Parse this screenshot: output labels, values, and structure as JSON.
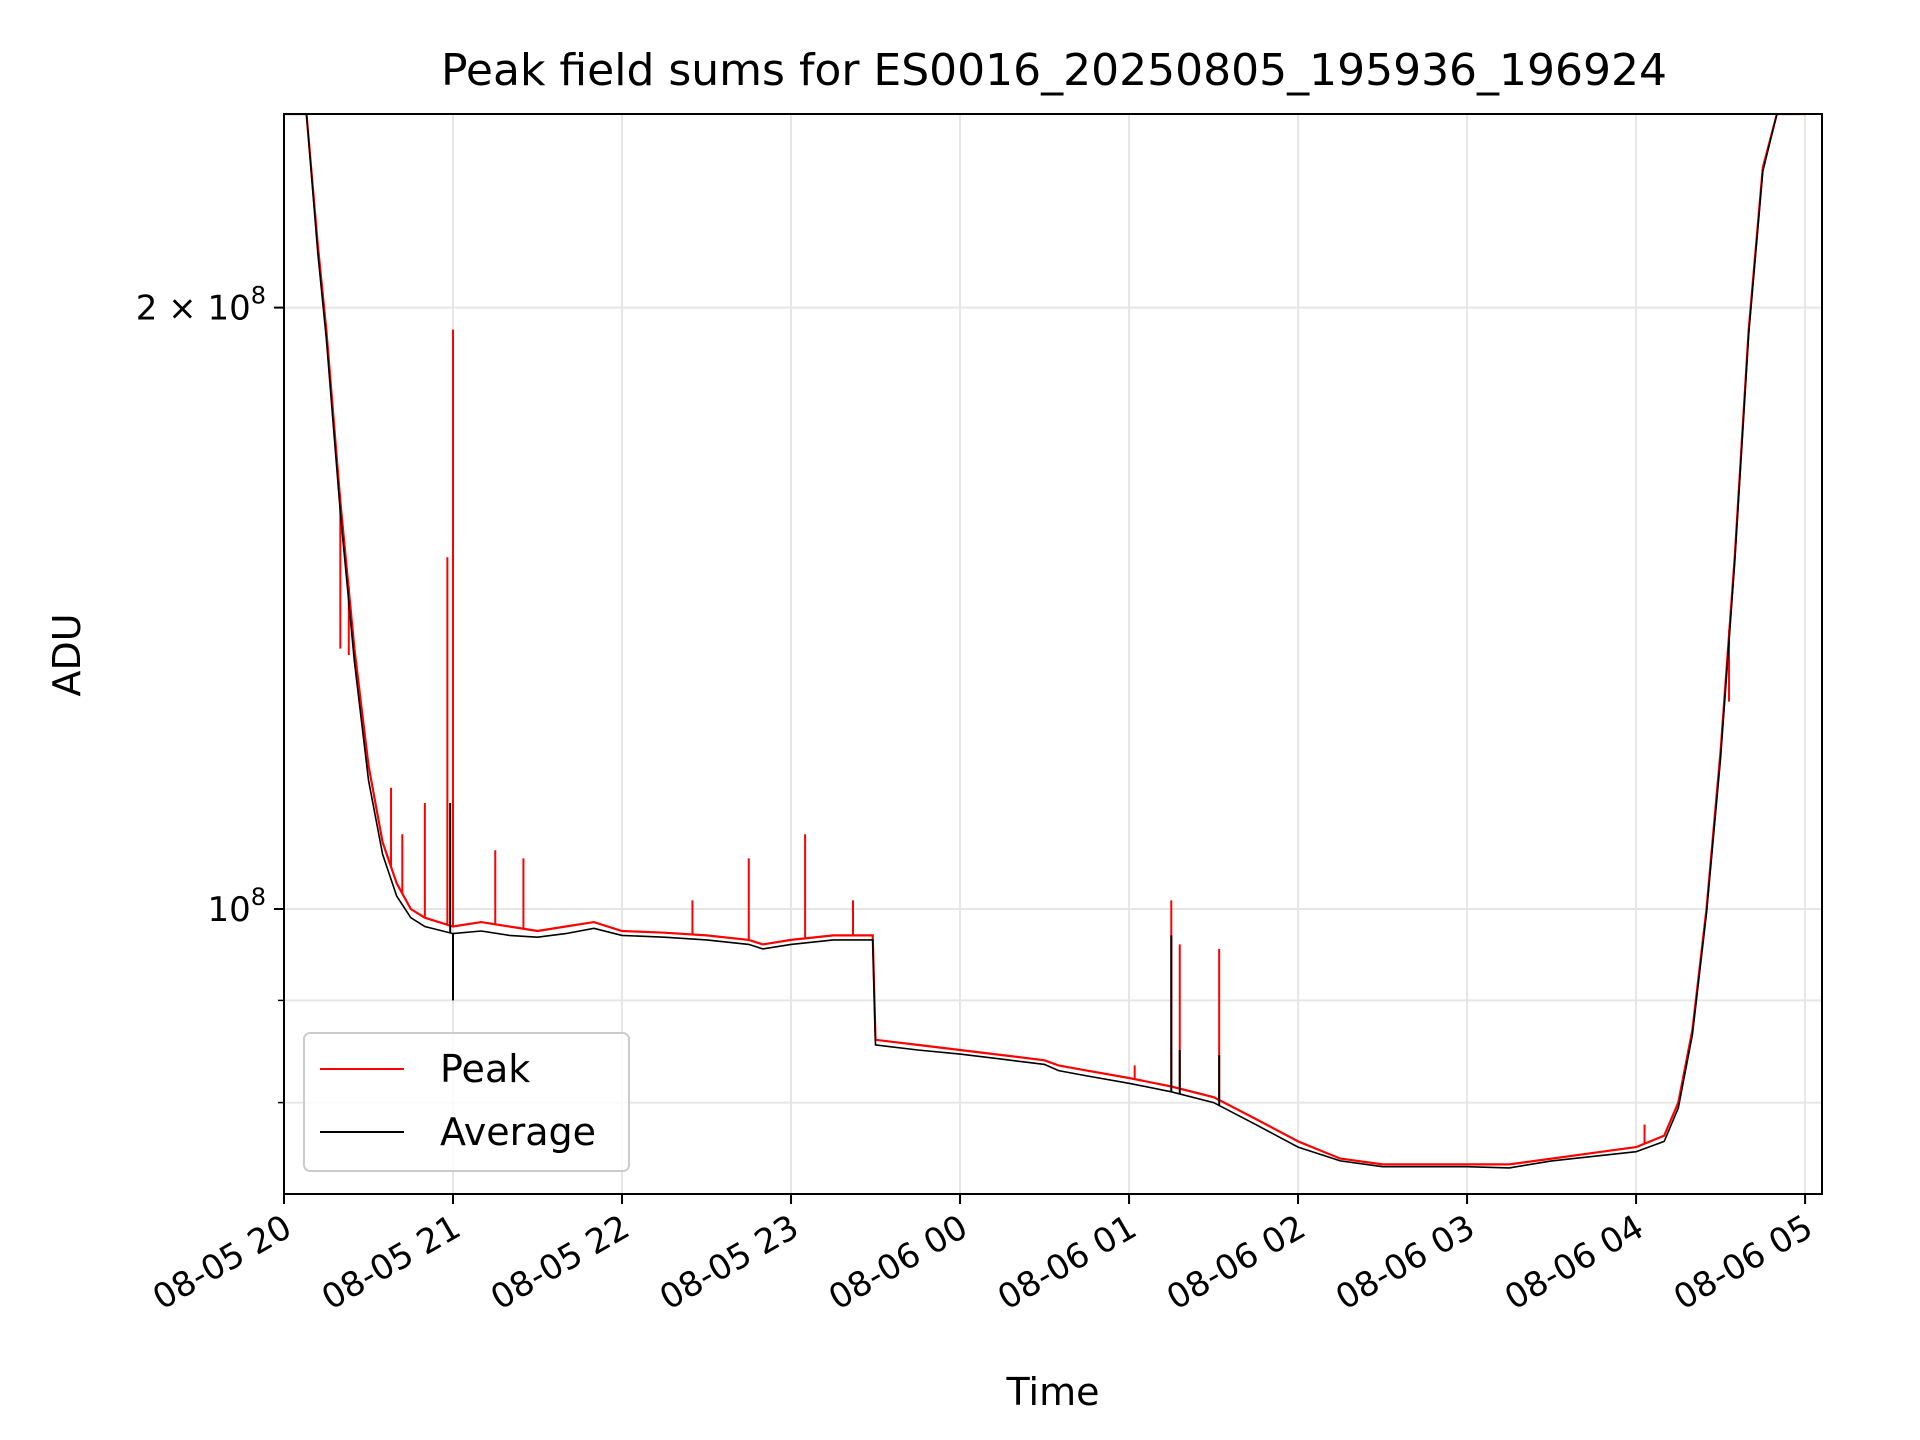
{
  "chart_data": {
    "type": "line",
    "title": "Peak field sums for ES0016_20250805_195936_196924",
    "xlabel": "Time",
    "ylabel": "ADU",
    "yscale": "log",
    "xlim": [
      "2025-08-05 20:00",
      "2025-08-06 05:00"
    ],
    "ylim": [
      72000000,
      250000000
    ],
    "grid": true,
    "legend_position": "lower-left",
    "x_ticks": [
      {
        "t": "2025-08-05 20:00",
        "label": "08-05 20"
      },
      {
        "t": "2025-08-05 21:00",
        "label": "08-05 21"
      },
      {
        "t": "2025-08-05 22:00",
        "label": "08-05 22"
      },
      {
        "t": "2025-08-05 23:00",
        "label": "08-05 23"
      },
      {
        "t": "2025-08-06 00:00",
        "label": "08-06 00"
      },
      {
        "t": "2025-08-06 01:00",
        "label": "08-06 01"
      },
      {
        "t": "2025-08-06 02:00",
        "label": "08-06 02"
      },
      {
        "t": "2025-08-06 03:00",
        "label": "08-06 03"
      },
      {
        "t": "2025-08-06 04:00",
        "label": "08-06 04"
      },
      {
        "t": "2025-08-06 05:00",
        "label": "08-06 05"
      }
    ],
    "y_ticks": [
      {
        "value": 100000000,
        "base": "10",
        "exp": "8"
      },
      {
        "value": 200000000,
        "base": "2 × 10",
        "exp": "8"
      }
    ],
    "series": [
      {
        "name": "Peak",
        "color": "#ff0000",
        "points": [
          [
            "2025-08-05 20:00",
            250000000
          ],
          [
            "2025-08-05 20:08",
            250000000
          ],
          [
            "2025-08-05 20:12",
            215000000
          ],
          [
            "2025-08-05 20:15",
            195000000
          ],
          [
            "2025-08-05 20:20",
            160000000
          ],
          [
            "2025-08-05 20:25",
            135000000
          ],
          [
            "2025-08-05 20:30",
            118000000
          ],
          [
            "2025-08-05 20:35",
            108000000
          ],
          [
            "2025-08-05 20:40",
            103000000
          ],
          [
            "2025-08-05 20:45",
            100000000
          ],
          [
            "2025-08-05 20:50",
            99000000
          ],
          [
            "2025-08-05 21:00",
            98000000
          ],
          [
            "2025-08-05 21:10",
            98500000
          ],
          [
            "2025-08-05 21:20",
            98000000
          ],
          [
            "2025-08-05 21:30",
            97500000
          ],
          [
            "2025-08-05 21:40",
            98000000
          ],
          [
            "2025-08-05 21:50",
            98500000
          ],
          [
            "2025-08-05 22:00",
            97500000
          ],
          [
            "2025-08-05 22:15",
            97300000
          ],
          [
            "2025-08-05 22:30",
            97000000
          ],
          [
            "2025-08-05 22:45",
            96500000
          ],
          [
            "2025-08-05 22:50",
            96000000
          ],
          [
            "2025-08-05 23:00",
            96500000
          ],
          [
            "2025-08-05 23:15",
            97000000
          ],
          [
            "2025-08-05 23:29",
            97000000
          ],
          [
            "2025-08-05 23:30",
            86000000
          ],
          [
            "2025-08-05 23:45",
            85500000
          ],
          [
            "2025-08-06 00:00",
            85000000
          ],
          [
            "2025-08-06 00:15",
            84500000
          ],
          [
            "2025-08-06 00:30",
            84000000
          ],
          [
            "2025-08-06 00:35",
            83500000
          ],
          [
            "2025-08-06 00:45",
            83000000
          ],
          [
            "2025-08-06 01:00",
            82300000
          ],
          [
            "2025-08-06 01:15",
            81500000
          ],
          [
            "2025-08-06 01:30",
            80500000
          ],
          [
            "2025-08-06 01:45",
            78500000
          ],
          [
            "2025-08-06 02:00",
            76500000
          ],
          [
            "2025-08-06 02:15",
            75000000
          ],
          [
            "2025-08-06 02:30",
            74500000
          ],
          [
            "2025-08-06 02:45",
            74500000
          ],
          [
            "2025-08-06 03:00",
            74500000
          ],
          [
            "2025-08-06 03:15",
            74500000
          ],
          [
            "2025-08-06 03:30",
            75000000
          ],
          [
            "2025-08-06 03:45",
            75500000
          ],
          [
            "2025-08-06 04:00",
            76000000
          ],
          [
            "2025-08-06 04:10",
            77000000
          ],
          [
            "2025-08-06 04:15",
            80000000
          ],
          [
            "2025-08-06 04:20",
            87000000
          ],
          [
            "2025-08-06 04:25",
            100000000
          ],
          [
            "2025-08-06 04:30",
            120000000
          ],
          [
            "2025-08-06 04:35",
            150000000
          ],
          [
            "2025-08-06 04:40",
            195000000
          ],
          [
            "2025-08-06 04:45",
            235000000
          ],
          [
            "2025-08-06 04:50",
            250000000
          ],
          [
            "2025-08-06 05:00",
            250000000
          ]
        ],
        "spikes": [
          [
            "2025-08-05 20:20",
            135000000
          ],
          [
            "2025-08-05 20:23",
            134000000
          ],
          [
            "2025-08-05 20:38",
            115000000
          ],
          [
            "2025-08-05 20:42",
            109000000
          ],
          [
            "2025-08-05 20:50",
            113000000
          ],
          [
            "2025-08-05 20:58",
            150000000
          ],
          [
            "2025-08-05 21:00",
            195000000
          ],
          [
            "2025-08-05 21:15",
            107000000
          ],
          [
            "2025-08-05 21:25",
            106000000
          ],
          [
            "2025-08-05 22:25",
            101000000
          ],
          [
            "2025-08-05 22:45",
            106000000
          ],
          [
            "2025-08-05 23:05",
            109000000
          ],
          [
            "2025-08-05 23:22",
            101000000
          ],
          [
            "2025-08-06 01:02",
            83500000
          ],
          [
            "2025-08-06 01:15",
            101000000
          ],
          [
            "2025-08-06 01:18",
            96000000
          ],
          [
            "2025-08-06 01:32",
            95500000
          ],
          [
            "2025-08-06 04:03",
            78000000
          ],
          [
            "2025-08-06 04:33",
            127000000
          ]
        ]
      },
      {
        "name": "Average",
        "color": "#000000",
        "points": [
          [
            "2025-08-05 20:00",
            250000000
          ],
          [
            "2025-08-05 20:08",
            250000000
          ],
          [
            "2025-08-05 20:12",
            213000000
          ],
          [
            "2025-08-05 20:15",
            193000000
          ],
          [
            "2025-08-05 20:20",
            158000000
          ],
          [
            "2025-08-05 20:25",
            133000000
          ],
          [
            "2025-08-05 20:30",
            116000000
          ],
          [
            "2025-08-05 20:35",
            106500000
          ],
          [
            "2025-08-05 20:40",
            101500000
          ],
          [
            "2025-08-05 20:45",
            99000000
          ],
          [
            "2025-08-05 20:50",
            98000000
          ],
          [
            "2025-08-05 21:00",
            97200000
          ],
          [
            "2025-08-05 21:10",
            97500000
          ],
          [
            "2025-08-05 21:20",
            97000000
          ],
          [
            "2025-08-05 21:30",
            96800000
          ],
          [
            "2025-08-05 21:40",
            97200000
          ],
          [
            "2025-08-05 21:50",
            97800000
          ],
          [
            "2025-08-05 22:00",
            97000000
          ],
          [
            "2025-08-05 22:15",
            96800000
          ],
          [
            "2025-08-05 22:30",
            96500000
          ],
          [
            "2025-08-05 22:45",
            96000000
          ],
          [
            "2025-08-05 22:50",
            95500000
          ],
          [
            "2025-08-05 23:00",
            96000000
          ],
          [
            "2025-08-05 23:15",
            96500000
          ],
          [
            "2025-08-05 23:29",
            96500000
          ],
          [
            "2025-08-05 23:30",
            85500000
          ],
          [
            "2025-08-05 23:45",
            85000000
          ],
          [
            "2025-08-06 00:00",
            84600000
          ],
          [
            "2025-08-06 00:15",
            84100000
          ],
          [
            "2025-08-06 00:30",
            83600000
          ],
          [
            "2025-08-06 00:35",
            83000000
          ],
          [
            "2025-08-06 00:45",
            82500000
          ],
          [
            "2025-08-06 01:00",
            81800000
          ],
          [
            "2025-08-06 01:15",
            81000000
          ],
          [
            "2025-08-06 01:30",
            80000000
          ],
          [
            "2025-08-06 01:45",
            78000000
          ],
          [
            "2025-08-06 02:00",
            76000000
          ],
          [
            "2025-08-06 02:15",
            74800000
          ],
          [
            "2025-08-06 02:30",
            74300000
          ],
          [
            "2025-08-06 02:45",
            74300000
          ],
          [
            "2025-08-06 03:00",
            74300000
          ],
          [
            "2025-08-06 03:15",
            74200000
          ],
          [
            "2025-08-06 03:30",
            74800000
          ],
          [
            "2025-08-06 03:45",
            75200000
          ],
          [
            "2025-08-06 04:00",
            75600000
          ],
          [
            "2025-08-06 04:10",
            76500000
          ],
          [
            "2025-08-06 04:15",
            79500000
          ],
          [
            "2025-08-06 04:20",
            86500000
          ],
          [
            "2025-08-06 04:25",
            99500000
          ],
          [
            "2025-08-06 04:30",
            119000000
          ],
          [
            "2025-08-06 04:35",
            149000000
          ],
          [
            "2025-08-06 04:40",
            194000000
          ],
          [
            "2025-08-06 04:45",
            234000000
          ],
          [
            "2025-08-06 04:50",
            250000000
          ],
          [
            "2025-08-06 05:00",
            250000000
          ]
        ],
        "spikes": [
          [
            "2025-08-05 20:59",
            113000000
          ],
          [
            "2025-08-05 21:00",
            90000000
          ],
          [
            "2025-08-06 01:15",
            97000000
          ],
          [
            "2025-08-06 01:18",
            85000000
          ],
          [
            "2025-08-06 01:32",
            84500000
          ]
        ]
      }
    ]
  }
}
